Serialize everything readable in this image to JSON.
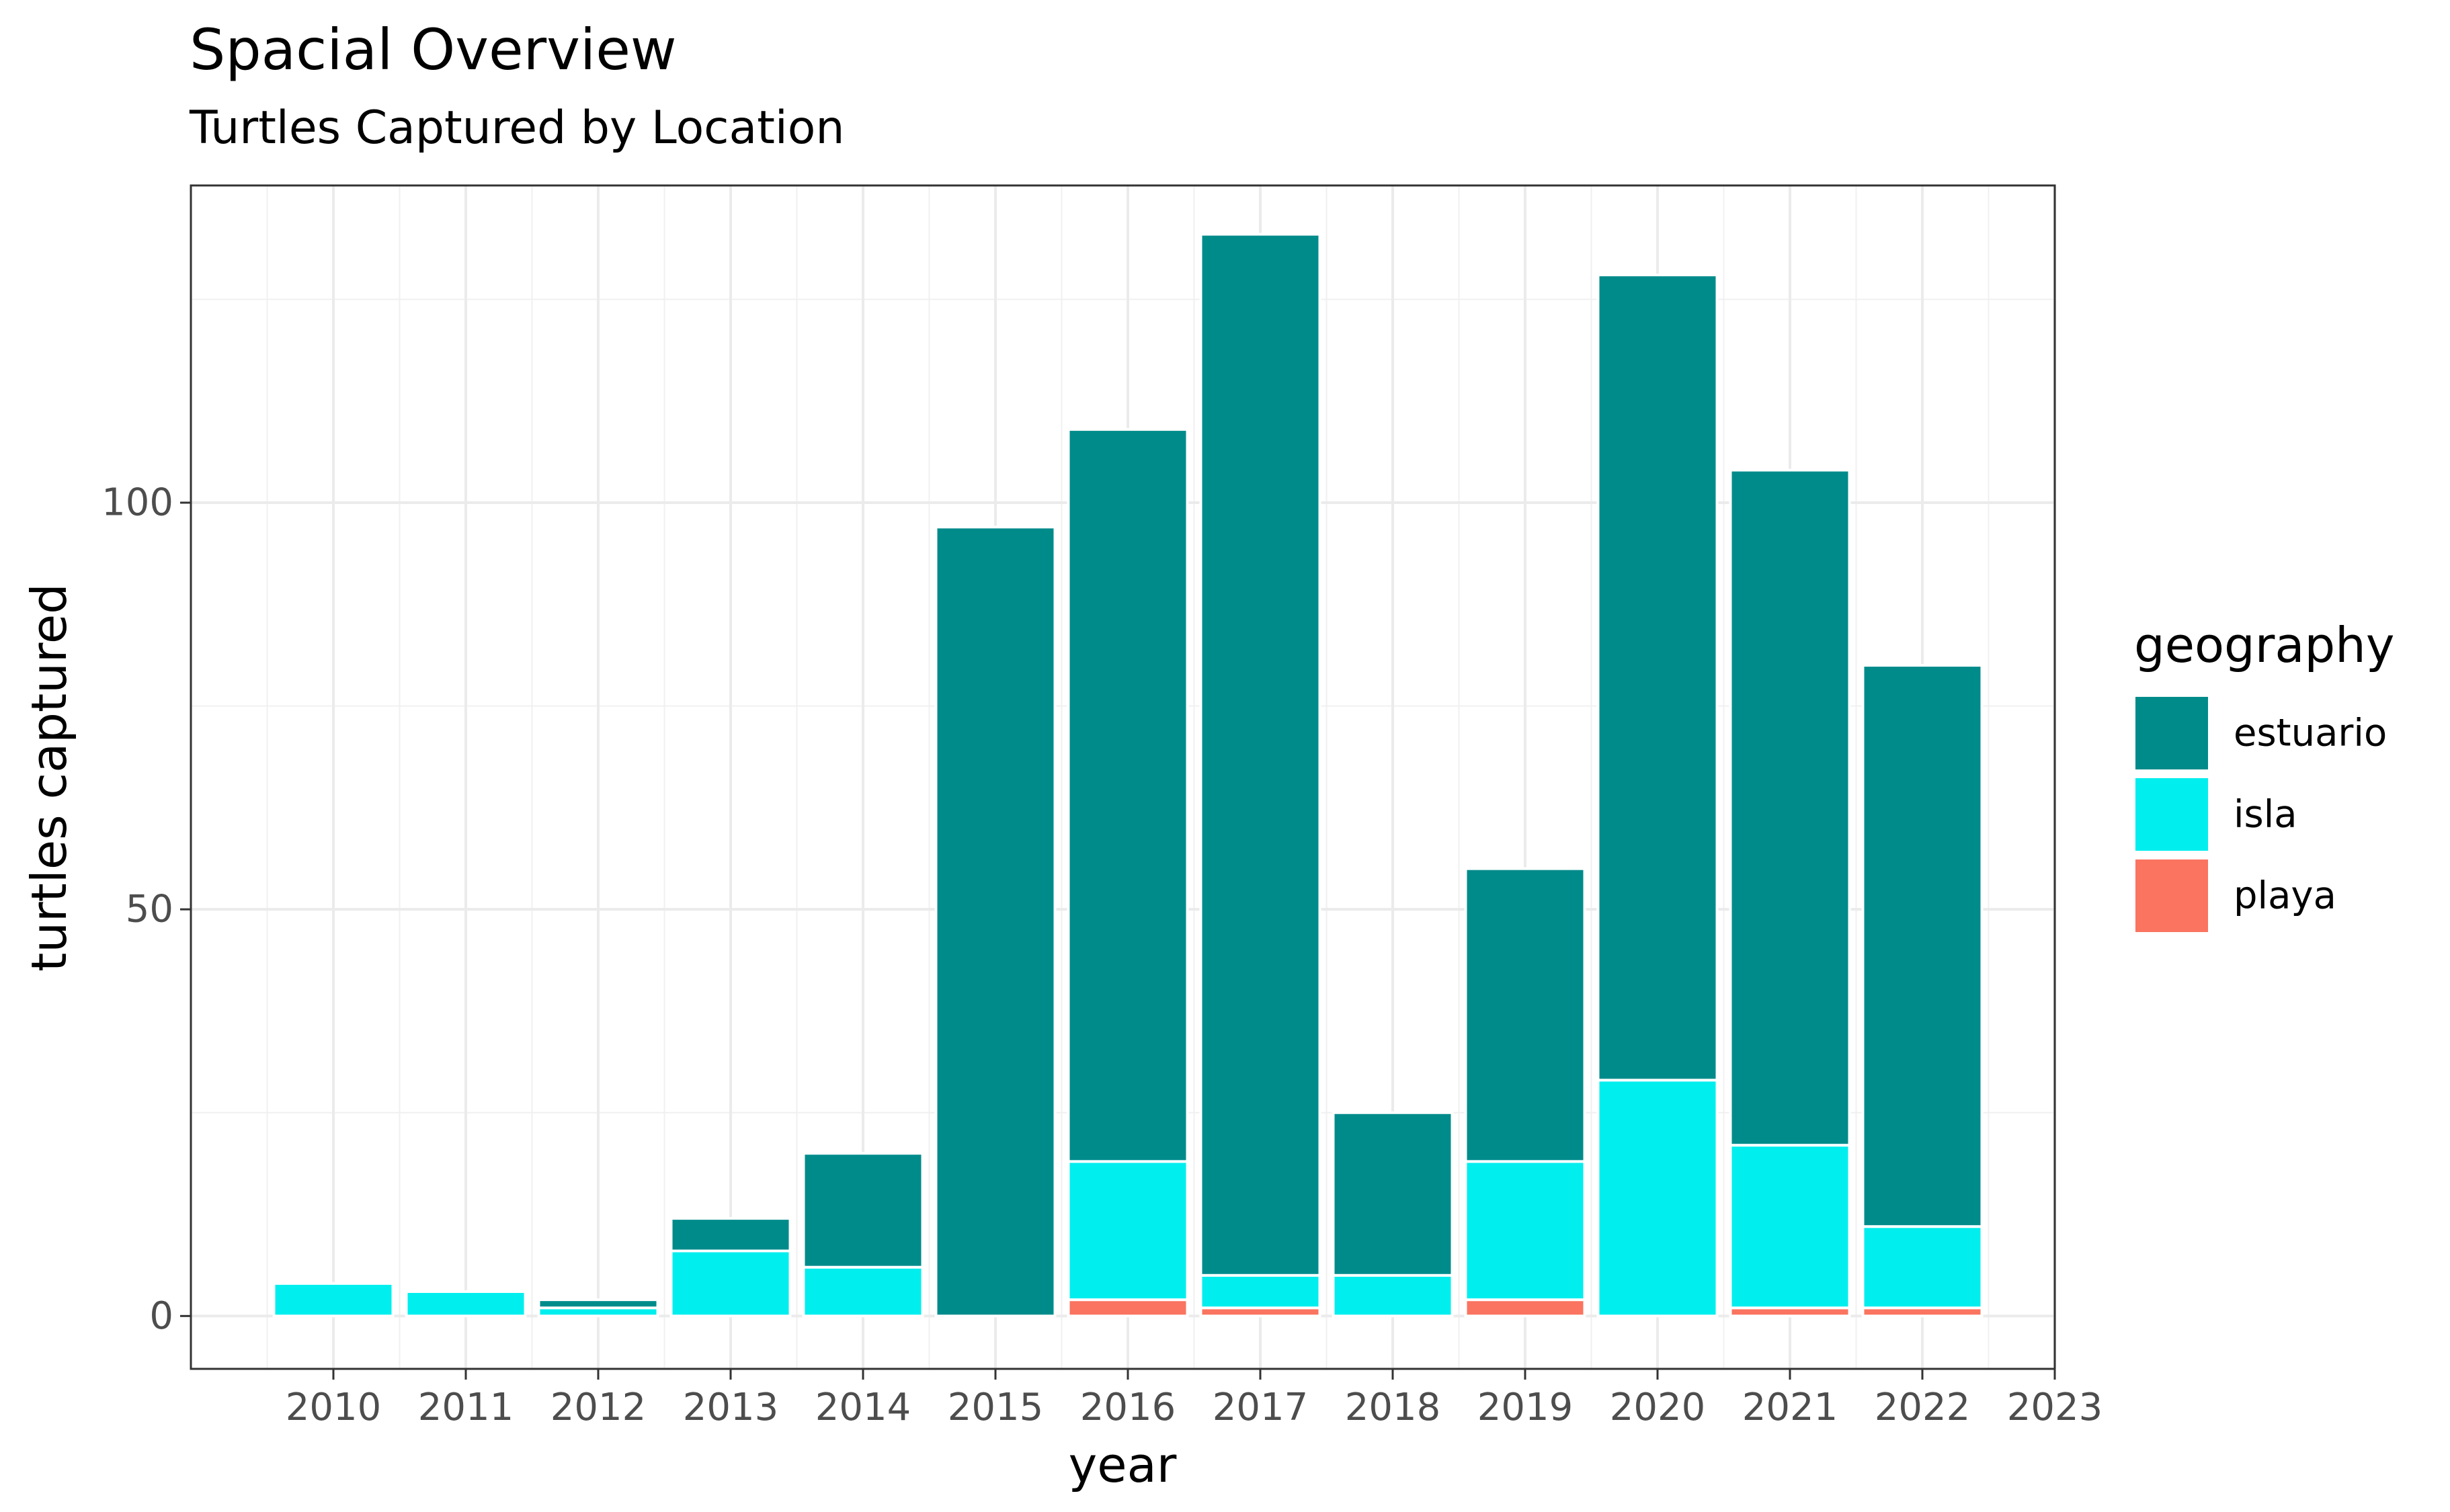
{
  "chart_data": {
    "type": "bar",
    "stacked": true,
    "title": "Spacial Overview",
    "subtitle": "Turtles Captured by Location",
    "xlabel": "year",
    "ylabel": "turtles captured",
    "x_ticks": [
      "2010",
      "2011",
      "2012",
      "2013",
      "2014",
      "2015",
      "2016",
      "2017",
      "2018",
      "2019",
      "2020",
      "2021",
      "2022",
      "2023"
    ],
    "categories": [
      "2010",
      "2011",
      "2012",
      "2013",
      "2014",
      "2015",
      "2016",
      "2017",
      "2018",
      "2019",
      "2020",
      "2021",
      "2022"
    ],
    "y_ticks": [
      0,
      50,
      100
    ],
    "ylim": [
      -6.5,
      139
    ],
    "grid": true,
    "legend_title": "geography",
    "legend_position": "right",
    "series": [
      {
        "name": "playa",
        "color": "#FA7460",
        "values": [
          0,
          0,
          0,
          0,
          0,
          0,
          2,
          1,
          0,
          2,
          0,
          1,
          1
        ]
      },
      {
        "name": "isla",
        "color": "#00EEEE",
        "values": [
          4,
          3,
          1,
          8,
          6,
          0,
          17,
          4,
          5,
          17,
          29,
          20,
          10
        ]
      },
      {
        "name": "estuario",
        "color": "#008B8B",
        "values": [
          0,
          0,
          1,
          4,
          14,
          97,
          90,
          128,
          20,
          36,
          99,
          83,
          69
        ]
      }
    ],
    "legend_order": [
      "estuario",
      "isla",
      "playa"
    ]
  }
}
